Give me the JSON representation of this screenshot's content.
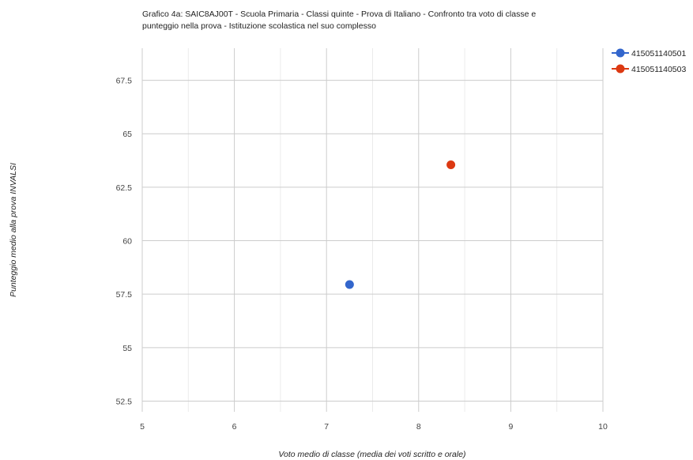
{
  "chart_data": {
    "type": "scatter",
    "title_line1": "Grafico 4a: SAIC8AJ00T - Scuola Primaria - Classi quinte - Prova di Italiano - Confronto tra voto di classe e",
    "title_line2": "punteggio nella prova - Istituzione scolastica nel suo complesso",
    "xlabel": "Voto medio di classe (media dei voti scritto e orale)",
    "ylabel": "Punteggio medio alla prova INVALSI",
    "xlim": [
      5,
      10
    ],
    "ylim": [
      52,
      69
    ],
    "x_ticks": [
      5,
      6,
      7,
      8,
      9,
      10
    ],
    "x_minor_ticks": [
      5.5,
      6.5,
      7.5,
      8.5,
      9.5
    ],
    "y_ticks": [
      52.5,
      55,
      57.5,
      60,
      62.5,
      65,
      67.5
    ],
    "y_tick_labels": [
      "52.5",
      "55",
      "57.5",
      "60",
      "62.5",
      "65",
      "67.5"
    ],
    "grid": true,
    "legend_position": "top-right",
    "series": [
      {
        "name": "415051140501",
        "color": "#3366cc",
        "x": [
          7.25
        ],
        "y": [
          57.95
        ]
      },
      {
        "name": "415051140503",
        "color": "#dc3912",
        "x": [
          8.35
        ],
        "y": [
          63.55
        ]
      }
    ]
  }
}
